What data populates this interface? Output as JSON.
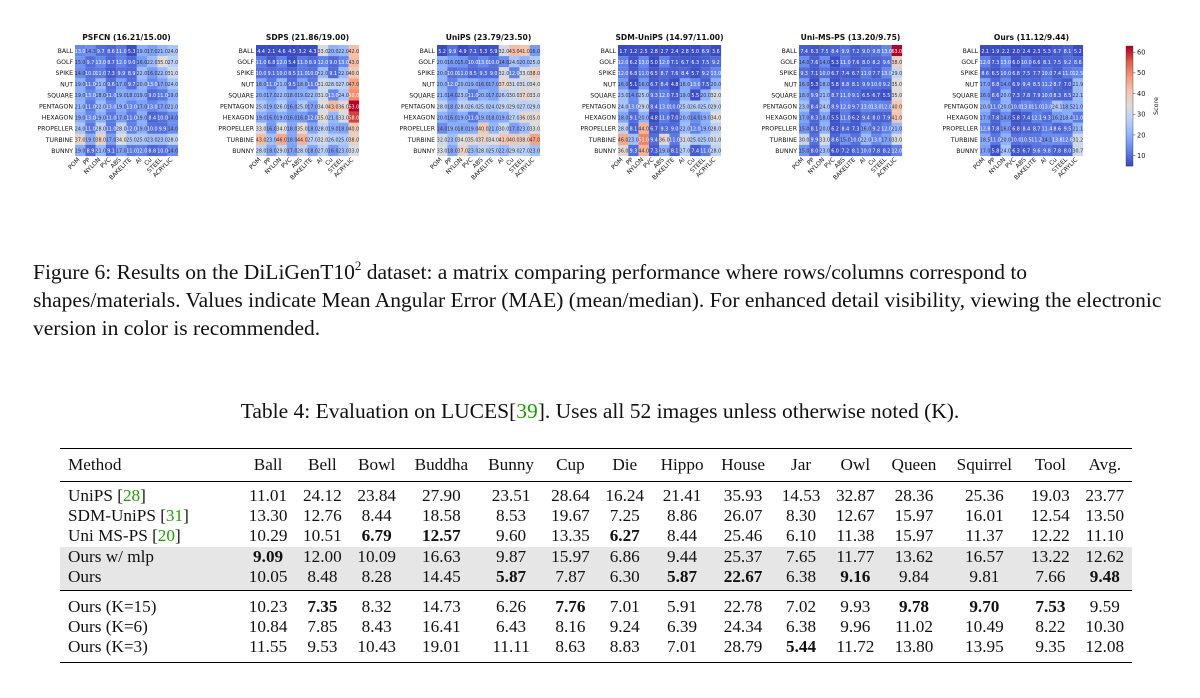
{
  "figure": {
    "rows": [
      "BALL",
      "GOLF",
      "SPIKE",
      "NUT",
      "SQUARE",
      "PENTAGON",
      "HEXAGON",
      "PROPELLER",
      "TURBINE",
      "BUNNY"
    ],
    "cols": [
      "POM",
      "PP",
      "NYLON",
      "PVC",
      "ABS",
      "BAKELITE",
      "Al",
      "Cu",
      "STEEL",
      "ACRYLIC"
    ],
    "colorbar": {
      "label": "Score",
      "ticks": [
        10,
        20,
        30,
        40,
        50,
        60
      ],
      "min": 5,
      "max": 63
    },
    "panels": [
      {
        "title": "PSFCN (16.21/15.00)",
        "data": [
          [
            13.0,
            14.3,
            9.7,
            8.6,
            11.0,
            5.3,
            19.0,
            17.0,
            21.0,
            24.0
          ],
          [
            15.0,
            9.7,
            13.0,
            8.7,
            12.0,
            9.0,
            16.0,
            22.0,
            35.0,
            27.0
          ],
          [
            14.0,
            10.0,
            11.0,
            7.3,
            9.9,
            8.9,
            22.0,
            16.0,
            22.0,
            31.0
          ],
          [
            19.0,
            11.0,
            21.0,
            9.6,
            17.0,
            9.7,
            20.0,
            13.0,
            17.0,
            24.0
          ],
          [
            19.0,
            13.0,
            18.0,
            11.0,
            19.0,
            18.0,
            19.0,
            9.0,
            11.0,
            19.0
          ],
          [
            21.0,
            11.0,
            22.0,
            13.0,
            19.0,
            13.0,
            17.0,
            13.0,
            17.0,
            21.0
          ],
          [
            19.0,
            13.0,
            19.0,
            11.0,
            17.0,
            11.0,
            19.0,
            8.4,
            10.0,
            14.0
          ],
          [
            24.0,
            11.0,
            28.0,
            11.0,
            28.0,
            12.0,
            19.0,
            10.0,
            9.9,
            14.0
          ],
          [
            37.0,
            19.0,
            38.0,
            17.0,
            34.0,
            25.0,
            25.0,
            23.0,
            23.0,
            28.0
          ],
          [
            19.0,
            8.9,
            21.0,
            9.1,
            17.0,
            11.0,
            12.0,
            8.8,
            10.0,
            14.0
          ]
        ]
      },
      {
        "title": "SDPS (21.86/19.00)",
        "data": [
          [
            4.4,
            2.1,
            4.6,
            4.5,
            3.2,
            4.3,
            33.0,
            20.0,
            22.0,
            42.0
          ],
          [
            11.0,
            6.8,
            12.0,
            5.4,
            11.0,
            8.9,
            12.0,
            9.0,
            13.0,
            43.0
          ],
          [
            10.0,
            9.1,
            10.0,
            8.5,
            11.0,
            10.0,
            22.0,
            9.1,
            22.0,
            40.0
          ],
          [
            18.0,
            11.0,
            21.0,
            9.5,
            18.0,
            11.0,
            31.0,
            28.0,
            27.0,
            47.0
          ],
          [
            20.0,
            17.0,
            22.0,
            18.0,
            19.0,
            22.0,
            31.0,
            13.0,
            24.0,
            50.0
          ],
          [
            25.0,
            19.0,
            26.0,
            16.0,
            25.0,
            17.0,
            34.0,
            43.0,
            36.0,
            63.0
          ],
          [
            19.0,
            16.0,
            19.0,
            16.0,
            16.0,
            12.0,
            35.0,
            21.0,
            33.0,
            58.0
          ],
          [
            33.0,
            16.0,
            34.0,
            18.0,
            35.0,
            18.0,
            28.0,
            19.0,
            18.0,
            40.0
          ],
          [
            43.0,
            23.0,
            46.0,
            18.0,
            44.0,
            27.0,
            32.0,
            26.0,
            25.0,
            38.0
          ],
          [
            28.0,
            18.0,
            29.0,
            17.0,
            28.0,
            18.0,
            27.0,
            16.0,
            23.0,
            33.0
          ]
        ]
      },
      {
        "title": "UniPS (23.79/23.50)",
        "data": [
          [
            5.2,
            9.9,
            4.9,
            7.1,
            5.3,
            5.9,
            32.0,
            43.0,
            41.0,
            16.0
          ],
          [
            20.0,
            16.0,
            15.0,
            10.0,
            13.0,
            10.0,
            14.0,
            24.0,
            20.0,
            25.0
          ],
          [
            20.0,
            10.0,
            11.0,
            8.5,
            9.3,
            9.0,
            32.0,
            12.0,
            33.0,
            38.0
          ],
          [
            20.0,
            12.0,
            20.0,
            19.0,
            16.0,
            17.0,
            37.0,
            31.0,
            31.0,
            34.0
          ],
          [
            21.0,
            14.0,
            23.0,
            11.0,
            20.0,
            17.0,
            26.0,
            30.0,
            37.0,
            33.0
          ],
          [
            28.0,
            18.0,
            28.0,
            26.0,
            25.0,
            24.0,
            29.0,
            29.0,
            27.0,
            29.0
          ],
          [
            20.0,
            16.0,
            19.0,
            11.0,
            19.0,
            18.0,
            19.0,
            27.0,
            36.0,
            35.0
          ],
          [
            14.0,
            19.0,
            18.0,
            19.0,
            40.0,
            21.0,
            30.0,
            17.0,
            23.0,
            33.0
          ],
          [
            32.0,
            23.0,
            34.0,
            35.0,
            37.0,
            34.0,
            41.0,
            40.0,
            38.0,
            47.0
          ],
          [
            33.0,
            18.0,
            37.0,
            23.0,
            28.0,
            25.0,
            22.0,
            29.0,
            27.0,
            23.0
          ]
        ]
      },
      {
        "title": "SDM-UniPS (14.97/11.00)",
        "data": [
          [
            1.7,
            1.2,
            2.5,
            2.8,
            2.7,
            2.4,
            2.8,
            5.0,
            6.9,
            3.6
          ],
          [
            12.0,
            6.2,
            13.0,
            5.0,
            12.0,
            7.1,
            6.7,
            6.3,
            7.5,
            9.2
          ],
          [
            12.0,
            6.8,
            11.0,
            6.5,
            8.7,
            7.6,
            8.4,
            5.7,
            9.2,
            13.0
          ],
          [
            16.0,
            5.1,
            16.0,
            6.7,
            8.4,
            4.8,
            18.0,
            13.0,
            7.5,
            20.0
          ],
          [
            23.0,
            14.0,
            25.0,
            9.3,
            12.0,
            7.3,
            19.0,
            5.5,
            20.0,
            32.0
          ],
          [
            24.0,
            13.0,
            29.0,
            8.4,
            13.0,
            10.0,
            25.0,
            26.0,
            25.0,
            29.0
          ],
          [
            18.0,
            9.1,
            20.0,
            4.8,
            11.0,
            7.0,
            20.0,
            14.0,
            19.0,
            34.0
          ],
          [
            28.0,
            8.1,
            44.0,
            6.7,
            9.3,
            9.0,
            22.0,
            12.0,
            19.0,
            28.0
          ],
          [
            46.0,
            23.0,
            51.0,
            9.4,
            36.0,
            11.0,
            31.0,
            25.0,
            25.0,
            31.0
          ],
          [
            36.0,
            9.3,
            44.0,
            7.3,
            19.0,
            8.1,
            27.0,
            7.4,
            11.0,
            28.0
          ]
        ]
      },
      {
        "title": "Uni-MS-PS (13.20/9.75)",
        "data": [
          [
            7.4,
            6.3,
            7.5,
            8.4,
            9.9,
            7.2,
            9.0,
            9.8,
            13.0,
            63.0
          ],
          [
            14.0,
            7.6,
            14.0,
            5.3,
            11.0,
            7.6,
            8.0,
            8.2,
            9.6,
            38.0
          ],
          [
            9.3,
            7.1,
            10.0,
            6.7,
            7.4,
            6.7,
            11.0,
            7.7,
            13.0,
            29.0
          ],
          [
            16.0,
            5.3,
            18.0,
            5.8,
            8.8,
            8.1,
            9.9,
            10.0,
            9.2,
            35.0
          ],
          [
            18.0,
            9.9,
            21.0,
            8.7,
            11.0,
            9.1,
            6.5,
            6.7,
            5.5,
            35.0
          ],
          [
            23.0,
            8.4,
            24.0,
            8.9,
            12.0,
            9.7,
            13.0,
            13.0,
            12.0,
            40.0
          ],
          [
            17.0,
            8.3,
            18.0,
            5.5,
            11.0,
            6.2,
            9.4,
            8.0,
            7.9,
            41.0
          ],
          [
            15.0,
            8.1,
            20.0,
            6.2,
            8.4,
            7.3,
            16.0,
            9.2,
            12.0,
            21.0
          ],
          [
            30.0,
            9.9,
            33.0,
            8.6,
            15.0,
            10.0,
            22.0,
            13.0,
            17.0,
            33.0
          ],
          [
            15.0,
            8.0,
            23.0,
            6.0,
            7.2,
            8.1,
            10.0,
            7.8,
            8.2,
            12.0
          ]
        ]
      },
      {
        "title": "Ours (11.12/9.44)",
        "data": [
          [
            2.1,
            1.9,
            2.2,
            2.0,
            2.4,
            2.3,
            5.3,
            6.7,
            8.1,
            5.2
          ],
          [
            12.0,
            7.3,
            13.0,
            6.0,
            10.0,
            6.6,
            8.1,
            7.5,
            9.2,
            8.6
          ],
          [
            8.6,
            6.5,
            10.0,
            6.8,
            7.5,
            7.7,
            10.0,
            7.4,
            11.0,
            12.5
          ],
          [
            17.0,
            8.8,
            14.0,
            6.9,
            9.4,
            8.5,
            11.2,
            8.7,
            7.0,
            21.9
          ],
          [
            16.0,
            8.6,
            20.0,
            7.3,
            7.8,
            7.9,
            10.0,
            8.3,
            8.5,
            22.1
          ],
          [
            20.0,
            11.0,
            20.0,
            10.0,
            13.0,
            11.0,
            13.0,
            24.1,
            18.5,
            21.0
          ],
          [
            17.0,
            7.8,
            14.0,
            5.8,
            7.4,
            12.1,
            9.3,
            16.2,
            18.4,
            11.0
          ],
          [
            12.8,
            7.8,
            16.0,
            6.8,
            8.4,
            8.7,
            11.4,
            8.6,
            9.5,
            21.1
          ],
          [
            18.5,
            11.0,
            20.0,
            10.0,
            10.5,
            11.2,
            14.1,
            13.8,
            12.6,
            31.2
          ],
          [
            17.0,
            5.8,
            24.0,
            6.3,
            6.7,
            9.6,
            9.8,
            7.8,
            8.0,
            30.7
          ]
        ]
      }
    ]
  },
  "fig_caption": {
    "prefix": "Figure 6: Results on the DiLiGenT10",
    "superscript": "2",
    "rest": " dataset: a matrix comparing performance where rows/columns correspond to shapes/materials. Values indicate Mean Angular Error (MAE) (mean/median). For enhanced detail visibility, viewing the electronic version in color is recommended."
  },
  "table_caption": {
    "prefix": "Table 4: Evaluation on LUCES[",
    "cite": "39",
    "suffix": "]. Uses all 52 images unless otherwise noted (K)."
  },
  "table": {
    "headers": [
      "Method",
      "Ball",
      "Bell",
      "Bowl",
      "Buddha",
      "Bunny",
      "Cup",
      "Die",
      "Hippo",
      "House",
      "Jar",
      "Owl",
      "Queen",
      "Squirrel",
      "Tool",
      "Avg."
    ],
    "rows": [
      {
        "name": "UniPS ",
        "cite": "28",
        "after": "",
        "values": [
          "11.01",
          "24.12",
          "23.84",
          "27.90",
          "23.51",
          "28.64",
          "16.24",
          "21.41",
          "35.93",
          "14.53",
          "32.87",
          "28.36",
          "25.36",
          "19.03",
          "23.77"
        ],
        "bold": [],
        "hl": false
      },
      {
        "name": "SDM-UniPS ",
        "cite": "31",
        "after": "",
        "values": [
          "13.30",
          "12.76",
          "8.44",
          "18.58",
          "8.53",
          "19.67",
          "7.25",
          "8.86",
          "26.07",
          "8.30",
          "12.67",
          "15.97",
          "16.01",
          "12.54",
          "13.50"
        ],
        "bold": [],
        "hl": false
      },
      {
        "name": "Uni MS-PS ",
        "cite": "20",
        "after": "",
        "values": [
          "10.29",
          "10.51",
          "6.79",
          "12.57",
          "9.60",
          "13.35",
          "6.27",
          "8.44",
          "25.46",
          "6.10",
          "11.38",
          "15.97",
          "11.37",
          "12.22",
          "11.10"
        ],
        "bold": [
          2,
          3,
          6
        ],
        "hl": false
      },
      {
        "name": "Ours w/ mlp",
        "cite": "",
        "after": "",
        "values": [
          "9.09",
          "12.00",
          "10.09",
          "16.63",
          "9.87",
          "15.97",
          "6.86",
          "9.44",
          "25.37",
          "7.65",
          "11.77",
          "13.62",
          "16.57",
          "13.22",
          "12.62"
        ],
        "bold": [
          0
        ],
        "hl": true
      },
      {
        "name": "Ours",
        "cite": "",
        "after": "",
        "values": [
          "10.05",
          "8.48",
          "8.28",
          "14.45",
          "5.87",
          "7.87",
          "6.30",
          "5.87",
          "22.67",
          "6.38",
          "9.16",
          "9.84",
          "9.81",
          "7.66",
          "9.48"
        ],
        "bold": [
          4,
          7,
          8,
          10,
          14
        ],
        "hl": true
      }
    ],
    "rows2": [
      {
        "name": "Ours (K=15)",
        "values": [
          "10.23",
          "7.35",
          "8.32",
          "14.73",
          "6.26",
          "7.76",
          "7.01",
          "5.91",
          "22.78",
          "7.02",
          "9.93",
          "9.78",
          "9.70",
          "7.53",
          "9.59"
        ],
        "bold": [
          1,
          5,
          11,
          12,
          13
        ]
      },
      {
        "name": "Ours (K=6)",
        "values": [
          "10.84",
          "7.85",
          "8.43",
          "16.41",
          "6.43",
          "8.16",
          "9.24",
          "6.39",
          "24.34",
          "6.38",
          "9.96",
          "11.02",
          "10.49",
          "8.22",
          "10.30"
        ],
        "bold": []
      },
      {
        "name": "Ours (K=3)",
        "values": [
          "11.55",
          "9.53",
          "10.43",
          "19.01",
          "11.11",
          "8.63",
          "8.83",
          "7.01",
          "28.79",
          "5.44",
          "11.72",
          "13.80",
          "13.95",
          "9.35",
          "12.08"
        ],
        "bold": [
          9
        ]
      }
    ]
  }
}
